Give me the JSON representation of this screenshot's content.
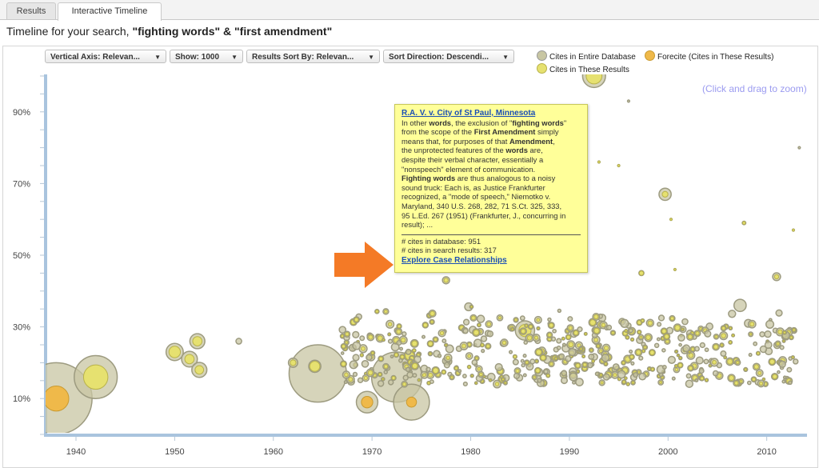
{
  "tabs": [
    {
      "label": "Results",
      "active": false
    },
    {
      "label": "Interactive Timeline",
      "active": true
    }
  ],
  "header": {
    "prefix": "Timeline for your search, ",
    "query": "\"fighting words\" & \"first amendment\""
  },
  "toolbar": {
    "vertical_axis": "Vertical Axis: Relevan...",
    "show": "Show: 1000",
    "sort_by": "Results Sort By: Relevan...",
    "sort_direction": "Sort Direction: Descendi..."
  },
  "legend": {
    "entire_db": "Cites in Entire Database",
    "forecite": "Forecite (Cites in These Results)",
    "these_results": "Cites in These Results"
  },
  "zoom_hint": "(Click and drag to zoom)",
  "colors": {
    "entire_db": "#c8c6a3",
    "these_results": "#e6e170",
    "forecite": "#efb94a",
    "axis": "#a9c4de",
    "link": "#1a4fb5",
    "arrow": "#f47a26",
    "tooltip_bg": "#ffff99"
  },
  "tooltip": {
    "case_link": "R.A. V. v. City of St Paul, Minnesota",
    "excerpt_lines": [
      "In other <b>words</b>, the exclusion of \"<b>fighting words</b>\"",
      "from the scope of the <b>First Amendment</b> simply",
      "means that, for purposes of that <b>Amendment</b>,",
      "the unprotected features of the <b>words</b> are,",
      "despite their verbal character, essentially a",
      "\"nonspeech\" element of communication.",
      "<b>Fighting words</b> are thus analogous to a noisy",
      "sound truck: Each is, as Justice Frankfurter",
      "recognized, a \"mode of speech,\" Niemotko v.",
      "Maryland, 340 U.S. 268, 282, 71 S.Ct. 325, 333,",
      "95 L.Ed. 267 (1951) (Frankfurter, J., concurring in",
      "result); ..."
    ],
    "cites_database": "# cites in database: 951",
    "cites_results": "# cites in search results: 317",
    "explore_link": "Explore Case Relationships"
  },
  "chart_data": {
    "type": "scatter",
    "title": "",
    "xlabel": "",
    "ylabel": "",
    "x_ticks": [
      "1940",
      "1950",
      "1960",
      "1970",
      "1980",
      "1990",
      "2000",
      "2010"
    ],
    "y_ticks": [
      "10%",
      "30%",
      "50%",
      "70%",
      "90%"
    ],
    "xlim": [
      1937,
      2014
    ],
    "ylim": [
      0,
      100
    ],
    "series": [
      {
        "name": "Cites in Entire Database",
        "kind": "outer"
      },
      {
        "name": "Cites in These Results",
        "kind": "inner"
      },
      {
        "name": "Forecite (Cites in These Results)",
        "kind": "forecite"
      }
    ],
    "bubbles": [
      {
        "x": 1938.0,
        "y": 10,
        "outer": 10,
        "inner": 0,
        "forecite": 3.5
      },
      {
        "x": 1942.0,
        "y": 16,
        "outer": 6,
        "inner": 3.4,
        "forecite": 0
      },
      {
        "x": 1950.0,
        "y": 23,
        "outer": 2.4,
        "inner": 1.6,
        "forecite": 0
      },
      {
        "x": 1951.5,
        "y": 21,
        "outer": 2.2,
        "inner": 1.3,
        "forecite": 0
      },
      {
        "x": 1952.3,
        "y": 26,
        "outer": 2.1,
        "inner": 1.3,
        "forecite": 0
      },
      {
        "x": 1952.5,
        "y": 18,
        "outer": 2.1,
        "inner": 1.2,
        "forecite": 0
      },
      {
        "x": 1956.5,
        "y": 26,
        "outer": 0.8,
        "inner": 0,
        "forecite": 0
      },
      {
        "x": 1964.5,
        "y": 17,
        "outer": 8,
        "inner": 0,
        "forecite": 0
      },
      {
        "x": 1962.0,
        "y": 20,
        "outer": 1.3,
        "inner": 0.8,
        "forecite": 0
      },
      {
        "x": 1964.2,
        "y": 19,
        "outer": 1.7,
        "inner": 1.4,
        "forecite": 0
      },
      {
        "x": 1972.5,
        "y": 16,
        "outer": 7,
        "inner": 0,
        "forecite": 0
      },
      {
        "x": 1974.0,
        "y": 9,
        "outer": 5,
        "inner": 0,
        "forecite": 1.4
      },
      {
        "x": 1969.5,
        "y": 9,
        "outer": 3,
        "inner": 0,
        "forecite": 1.6
      },
      {
        "x": 1973.8,
        "y": 22,
        "outer": 1.5,
        "inner": 1.2,
        "forecite": 0
      },
      {
        "x": 1977.5,
        "y": 43,
        "outer": 1.0,
        "inner": 0.6,
        "forecite": 0
      },
      {
        "x": 1985.5,
        "y": 29,
        "outer": 2.7,
        "inner": 1.7,
        "forecite": 0
      },
      {
        "x": 1992.5,
        "y": 100,
        "outer": 3.2,
        "inner": 2.2,
        "forecite": 0
      },
      {
        "x": 1993.0,
        "y": 76,
        "outer": 0.3,
        "inner": 0.3,
        "forecite": 0
      },
      {
        "x": 1996.0,
        "y": 93,
        "outer": 0.3,
        "inner": 0,
        "forecite": 0
      },
      {
        "x": 1995.0,
        "y": 75,
        "outer": 0.3,
        "inner": 0.3,
        "forecite": 0
      },
      {
        "x": 1999.7,
        "y": 67,
        "outer": 1.7,
        "inner": 0.8,
        "forecite": 0
      },
      {
        "x": 2000.3,
        "y": 60,
        "outer": 0.3,
        "inner": 0.3,
        "forecite": 0
      },
      {
        "x": 2007.7,
        "y": 59,
        "outer": 0.5,
        "inner": 0.4,
        "forecite": 0
      },
      {
        "x": 2012.7,
        "y": 57,
        "outer": 0.3,
        "inner": 0.3,
        "forecite": 0
      },
      {
        "x": 2013.3,
        "y": 80,
        "outer": 0.3,
        "inner": 0,
        "forecite": 0
      },
      {
        "x": 2011.0,
        "y": 44,
        "outer": 1.1,
        "inner": 0.6,
        "forecite": 0
      },
      {
        "x": 2007.3,
        "y": 36,
        "outer": 1.7,
        "inner": 0,
        "forecite": 0
      },
      {
        "x": 1997.3,
        "y": 45,
        "outer": 0.7,
        "inner": 0.6,
        "forecite": 0
      },
      {
        "x": 2000.7,
        "y": 46,
        "outer": 0.3,
        "inner": 0.3,
        "forecite": 0
      }
    ]
  }
}
